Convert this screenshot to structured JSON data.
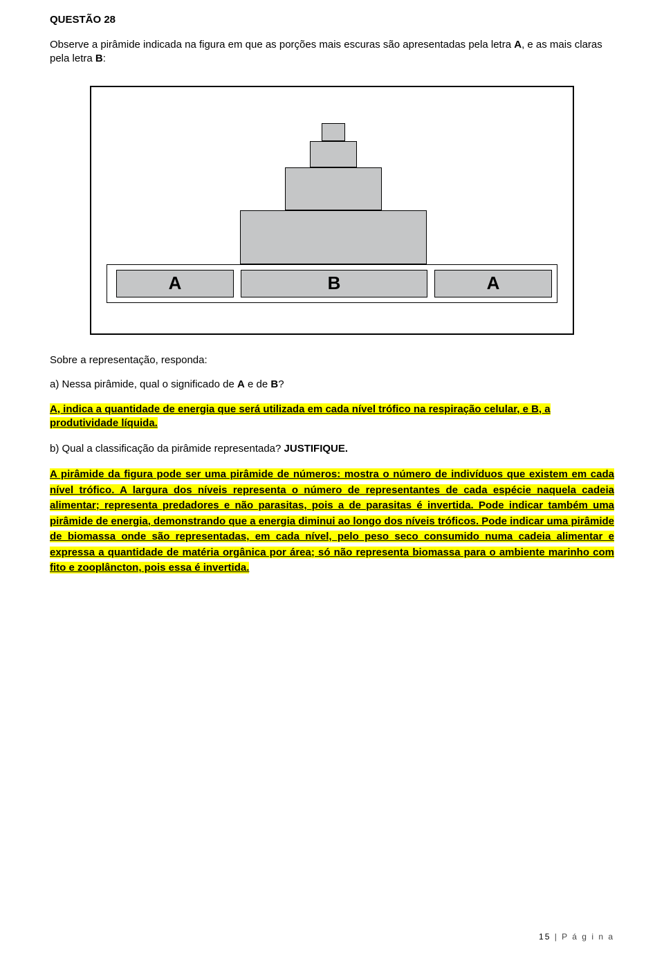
{
  "title": "QUESTÃO 28",
  "intro_pre": "Observe a pirâmide indicada na figura em que as porções mais escuras são apresentadas pela letra ",
  "intro_A": "A",
  "intro_mid": ", e as mais claras pela letra ",
  "intro_B": "B",
  "intro_end": ":",
  "figure": {
    "labelA": "A",
    "labelB": "B",
    "colors": {
      "dark": "#c5c6c7",
      "light": "#ffffff",
      "border": "#000000"
    }
  },
  "after_fig": "Sobre a representação, responda:",
  "qa_pre": "a) Nessa pirâmide, qual o significado de ",
  "qa_A": "A",
  "qa_mid": " e de ",
  "qa_B": "B",
  "qa_end": "?",
  "answer_a": "A, indica a quantidade de energia que será utilizada em cada nível trófico na respiração celular, e B, a produtividade líquida.",
  "qb_pre": "b) Qual a classificação da pirâmide representada? ",
  "qb_just": "JUSTIFIQUE.",
  "answer_b": "A pirâmide da figura pode ser uma pirâmide de números: mostra o número de indivíduos que existem em cada nível trófico. A largura dos níveis representa o número de representantes de cada espécie naquela cadeia alimentar; representa predadores e não parasitas, pois a de parasitas é invertida. Pode indicar também uma pirâmide de energia, demonstrando que a energia diminui ao longo dos níveis tróficos. Pode indicar uma pirâmide de biomassa onde são representadas, em cada nível, pelo peso seco consumido numa cadeia alimentar e expressa a quantidade de matéria orgânica por área; só não representa biomassa para o ambiente marinho com fito e zooplâncton, pois essa é invertida.",
  "footer_page": "15",
  "footer_label": " | P á g i n a"
}
